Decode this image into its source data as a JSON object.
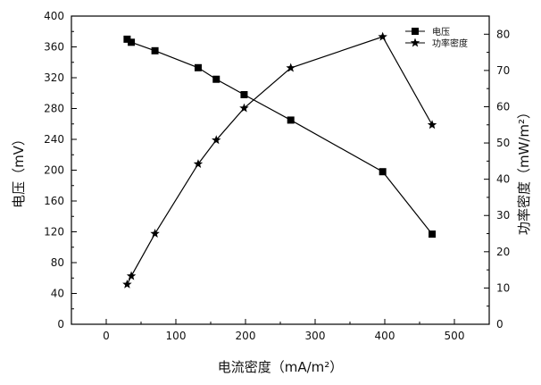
{
  "chart_data": {
    "type": "line",
    "x": [
      30,
      36,
      70,
      132,
      158,
      198,
      265,
      397,
      468
    ],
    "xlabel": "电流密度（mA/m²）",
    "xlim": [
      -50,
      550
    ],
    "xticks": [
      0,
      100,
      200,
      300,
      400,
      500
    ],
    "ylabel_left": "电压（mV）",
    "ylim_left": [
      0,
      400
    ],
    "yticks_left": [
      0,
      40,
      80,
      120,
      160,
      200,
      240,
      280,
      320,
      360,
      400
    ],
    "ylabel_right": "功率密度（mW/m²）",
    "ylim_right": [
      0,
      85
    ],
    "yticks_right": [
      0,
      10,
      20,
      30,
      40,
      50,
      60,
      70,
      80
    ],
    "grid": false,
    "legend_position": "top-right",
    "series": [
      {
        "name": "电压",
        "axis": "left",
        "marker": "square",
        "values": [
          370,
          366,
          355,
          333,
          318,
          298,
          265,
          198,
          117
        ]
      },
      {
        "name": "功率密度",
        "axis": "right",
        "marker": "star",
        "values": [
          11,
          13.3,
          25,
          44.2,
          50.8,
          59.6,
          70.7,
          79.3,
          55
        ]
      }
    ]
  }
}
